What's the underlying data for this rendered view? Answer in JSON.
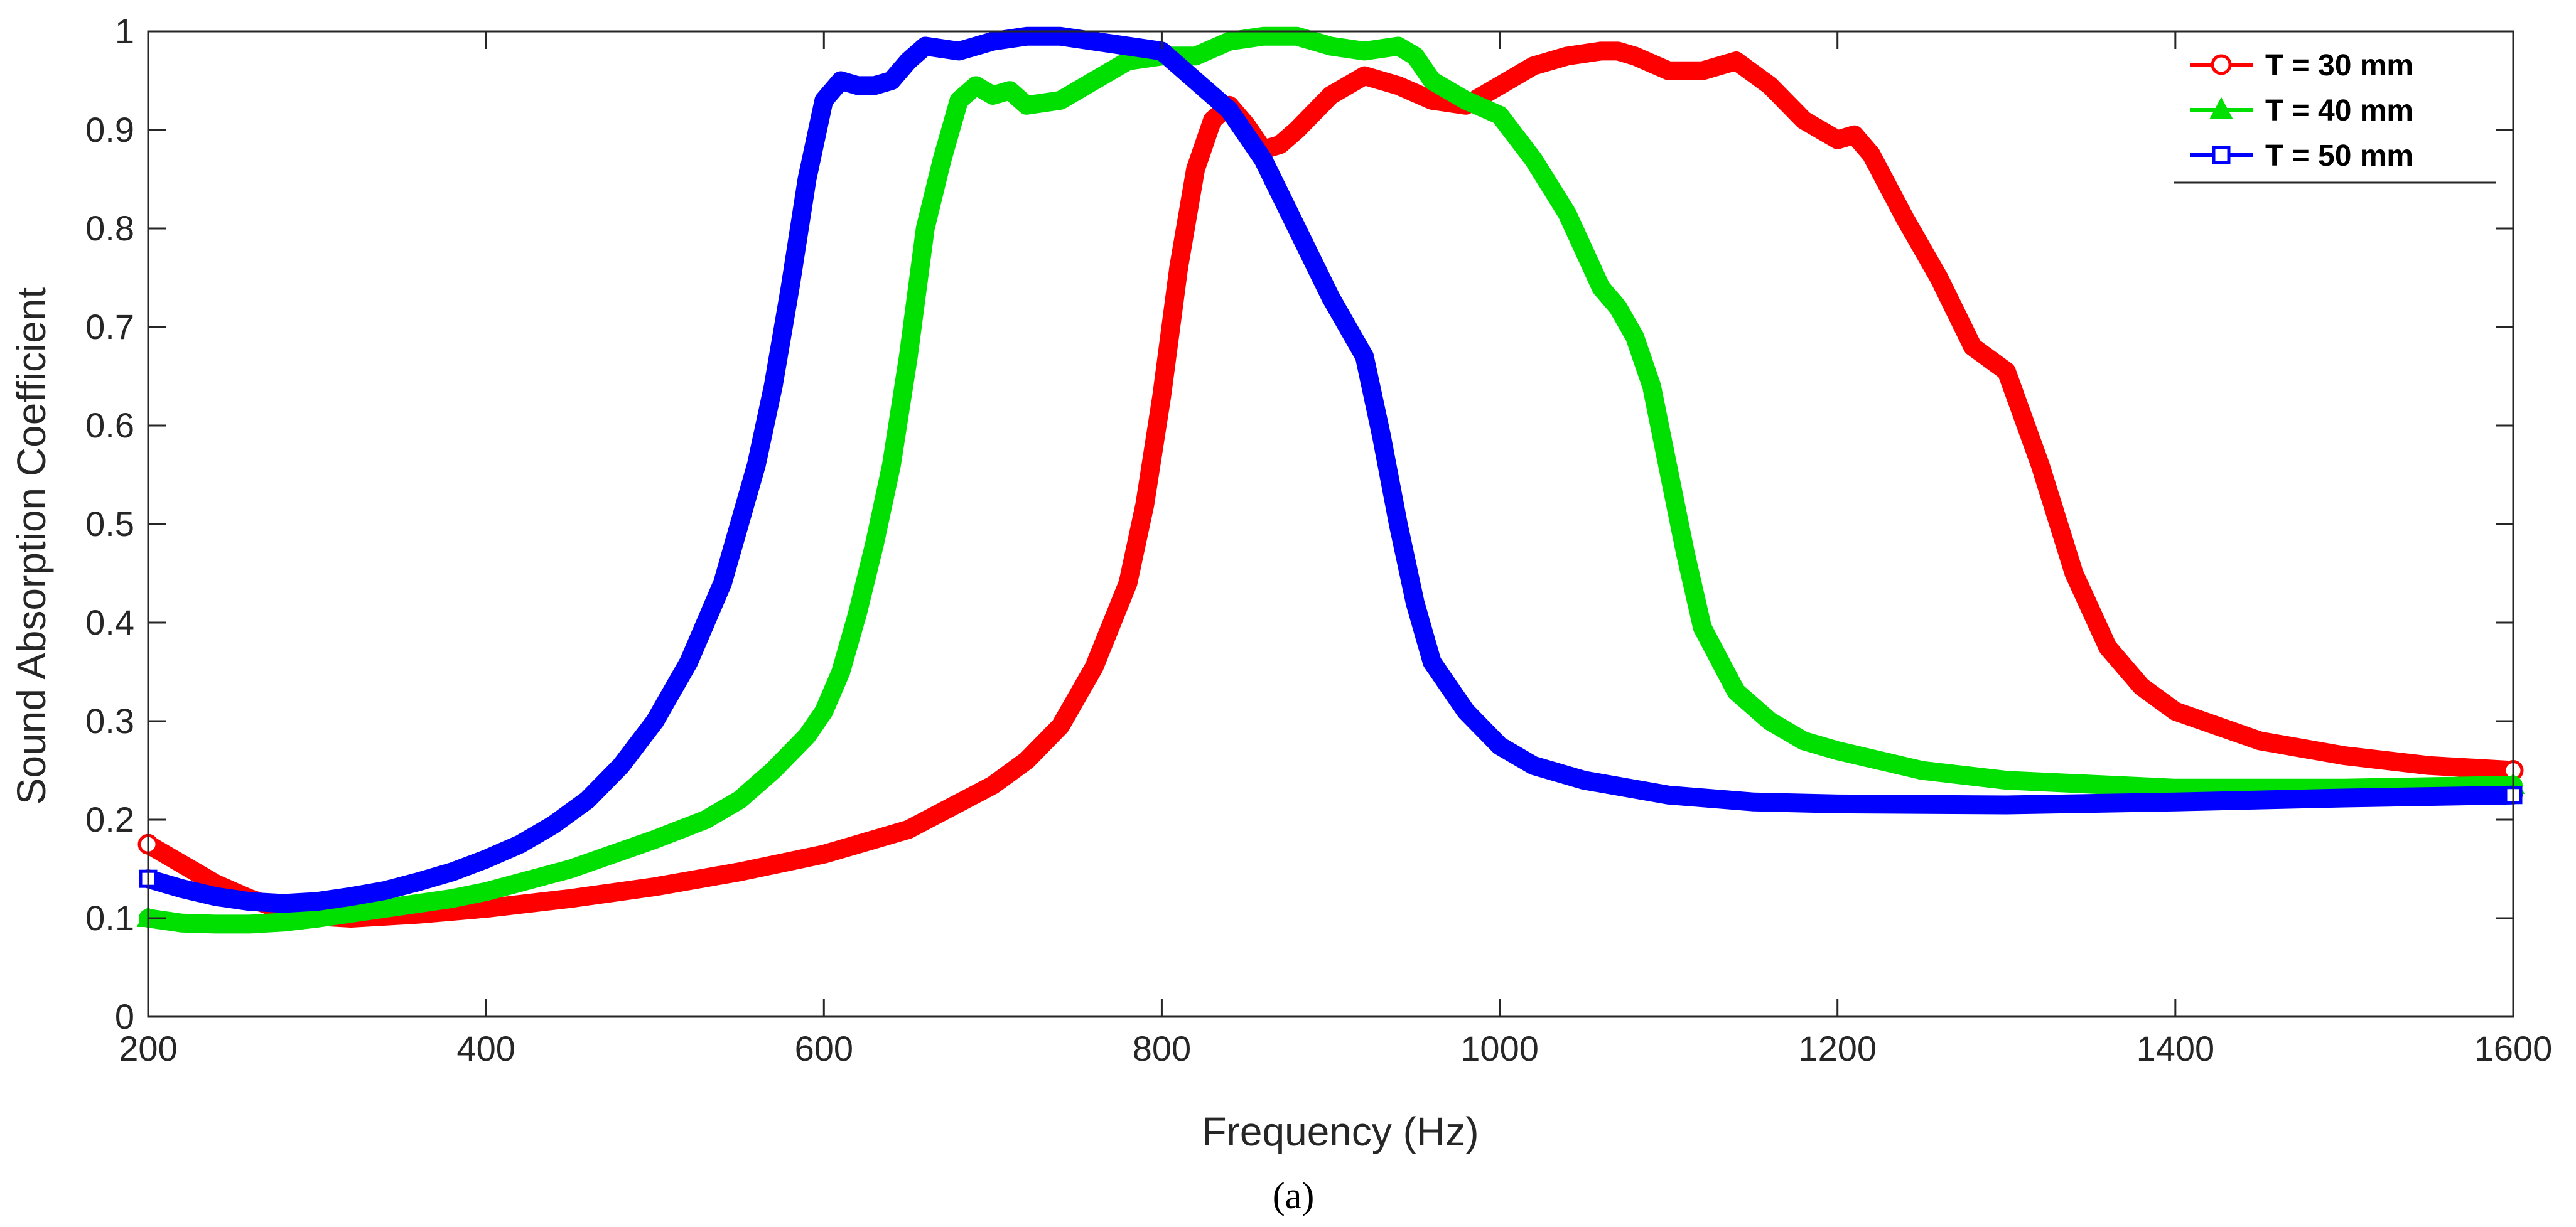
{
  "chart_data": {
    "type": "line",
    "xlabel": "Frequency (Hz)",
    "ylabel": "Sound Absorption Coefficient",
    "xlim": [
      200,
      1600
    ],
    "ylim": [
      0,
      1
    ],
    "xticks": [
      200,
      400,
      600,
      800,
      1000,
      1200,
      1400,
      1600
    ],
    "yticks": [
      0,
      0.1,
      0.2,
      0.3,
      0.4,
      0.5,
      0.6,
      0.7,
      0.8,
      0.9,
      1
    ],
    "ytick_labels": [
      "0",
      "0.1",
      "0.2",
      "0.3",
      "0.4",
      "0.5",
      "0.6",
      "0.7",
      "0.8",
      "0.9",
      "1"
    ],
    "grid": false,
    "legend_position": "top-right",
    "caption": "(a)",
    "series": [
      {
        "name": "T = 30 mm",
        "color": "#ff0000",
        "marker": "circle",
        "x": [
          200,
          220,
          240,
          260,
          280,
          300,
          320,
          340,
          360,
          380,
          400,
          450,
          500,
          550,
          600,
          650,
          700,
          720,
          740,
          760,
          780,
          790,
          800,
          810,
          820,
          830,
          840,
          850,
          860,
          870,
          880,
          900,
          920,
          940,
          960,
          980,
          1000,
          1020,
          1040,
          1060,
          1070,
          1080,
          1100,
          1120,
          1140,
          1160,
          1180,
          1200,
          1210,
          1220,
          1240,
          1260,
          1280,
          1300,
          1320,
          1340,
          1360,
          1380,
          1400,
          1450,
          1500,
          1550,
          1600
        ],
        "y": [
          0.175,
          0.155,
          0.135,
          0.12,
          0.108,
          0.102,
          0.1,
          0.102,
          0.104,
          0.107,
          0.11,
          0.12,
          0.132,
          0.147,
          0.165,
          0.19,
          0.235,
          0.26,
          0.295,
          0.355,
          0.44,
          0.52,
          0.63,
          0.76,
          0.86,
          0.91,
          0.925,
          0.905,
          0.88,
          0.885,
          0.9,
          0.935,
          0.955,
          0.945,
          0.93,
          0.925,
          0.945,
          0.965,
          0.975,
          0.98,
          0.98,
          0.975,
          0.96,
          0.96,
          0.97,
          0.945,
          0.91,
          0.89,
          0.895,
          0.875,
          0.81,
          0.75,
          0.68,
          0.655,
          0.56,
          0.45,
          0.375,
          0.335,
          0.31,
          0.28,
          0.265,
          0.255,
          0.25
        ]
      },
      {
        "name": "T = 40 mm",
        "color": "#00e000",
        "marker": "triangle",
        "x": [
          200,
          220,
          240,
          260,
          280,
          300,
          320,
          340,
          360,
          380,
          400,
          450,
          500,
          530,
          550,
          570,
          590,
          600,
          610,
          620,
          630,
          640,
          650,
          660,
          670,
          680,
          690,
          700,
          710,
          720,
          740,
          760,
          780,
          800,
          820,
          840,
          860,
          880,
          900,
          920,
          940,
          950,
          960,
          980,
          1000,
          1020,
          1040,
          1060,
          1070,
          1080,
          1090,
          1100,
          1110,
          1120,
          1140,
          1160,
          1180,
          1200,
          1250,
          1300,
          1400,
          1500,
          1600
        ],
        "y": [
          0.1,
          0.095,
          0.094,
          0.094,
          0.096,
          0.1,
          0.105,
          0.11,
          0.115,
          0.12,
          0.127,
          0.15,
          0.18,
          0.2,
          0.22,
          0.25,
          0.285,
          0.31,
          0.35,
          0.41,
          0.48,
          0.56,
          0.67,
          0.8,
          0.87,
          0.93,
          0.945,
          0.935,
          0.94,
          0.925,
          0.93,
          0.95,
          0.97,
          0.975,
          0.975,
          0.99,
          0.995,
          0.995,
          0.985,
          0.98,
          0.985,
          0.975,
          0.95,
          0.93,
          0.915,
          0.87,
          0.815,
          0.74,
          0.72,
          0.69,
          0.64,
          0.555,
          0.47,
          0.395,
          0.33,
          0.3,
          0.28,
          0.27,
          0.25,
          0.24,
          0.232,
          0.232,
          0.235
        ]
      },
      {
        "name": "T = 50 mm",
        "color": "#0000ff",
        "marker": "square",
        "x": [
          200,
          220,
          240,
          260,
          280,
          300,
          320,
          340,
          360,
          380,
          400,
          420,
          440,
          460,
          480,
          500,
          520,
          540,
          560,
          570,
          580,
          590,
          600,
          610,
          620,
          630,
          640,
          650,
          660,
          680,
          700,
          720,
          740,
          760,
          780,
          800,
          820,
          840,
          860,
          880,
          900,
          920,
          930,
          940,
          950,
          960,
          980,
          1000,
          1020,
          1050,
          1100,
          1150,
          1200,
          1300,
          1400,
          1500,
          1600
        ],
        "y": [
          0.14,
          0.13,
          0.122,
          0.117,
          0.115,
          0.117,
          0.122,
          0.128,
          0.137,
          0.147,
          0.16,
          0.175,
          0.195,
          0.22,
          0.255,
          0.3,
          0.36,
          0.44,
          0.56,
          0.64,
          0.74,
          0.85,
          0.93,
          0.95,
          0.945,
          0.945,
          0.95,
          0.97,
          0.985,
          0.98,
          0.99,
          0.995,
          0.995,
          0.99,
          0.985,
          0.98,
          0.95,
          0.92,
          0.87,
          0.8,
          0.73,
          0.67,
          0.59,
          0.5,
          0.42,
          0.36,
          0.31,
          0.275,
          0.255,
          0.24,
          0.225,
          0.218,
          0.216,
          0.215,
          0.218,
          0.222,
          0.225
        ]
      }
    ]
  }
}
